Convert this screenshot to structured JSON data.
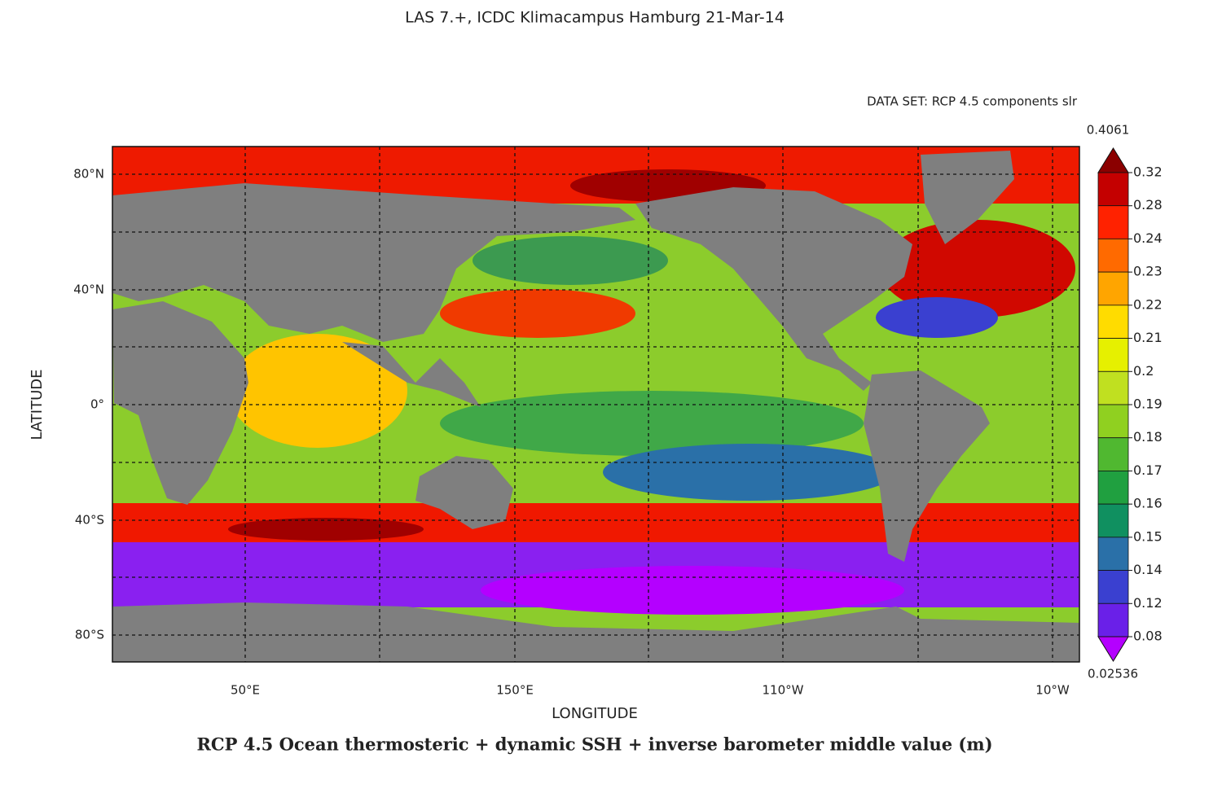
{
  "header": "LAS 7.+, ICDC Klimacampus Hamburg 21-Mar-14",
  "dataset": "DATA SET: RCP 4.5 components slr",
  "map": {
    "y_label": "LATITUDE",
    "x_label": "LONGITUDE",
    "lat_ticks": [
      "80°N",
      "40°N",
      "0°",
      "40°S",
      "80°S"
    ],
    "lon_ticks": [
      "50°E",
      "150°E",
      "110°W",
      "10°W"
    ]
  },
  "colorbar": {
    "max": "0.4061",
    "min": "0.02536",
    "levels": [
      "0.32",
      "0.28",
      "0.24",
      "0.23",
      "0.22",
      "0.21",
      "0.2",
      "0.19",
      "0.18",
      "0.17",
      "0.16",
      "0.15",
      "0.14",
      "0.12",
      "0.08"
    ],
    "colors": [
      "#8b0000",
      "#c40000",
      "#ff2200",
      "#ff6a00",
      "#ffa500",
      "#ffdc00",
      "#e6f000",
      "#c0e020",
      "#90d020",
      "#50b830",
      "#20a040",
      "#109060",
      "#2a70a8",
      "#3a40d0",
      "#6a20e8",
      "#b400ff"
    ]
  },
  "caption": "RCP 4.5 Ocean thermosteric + dynamic SSH + inverse barometer middle value (m)"
}
